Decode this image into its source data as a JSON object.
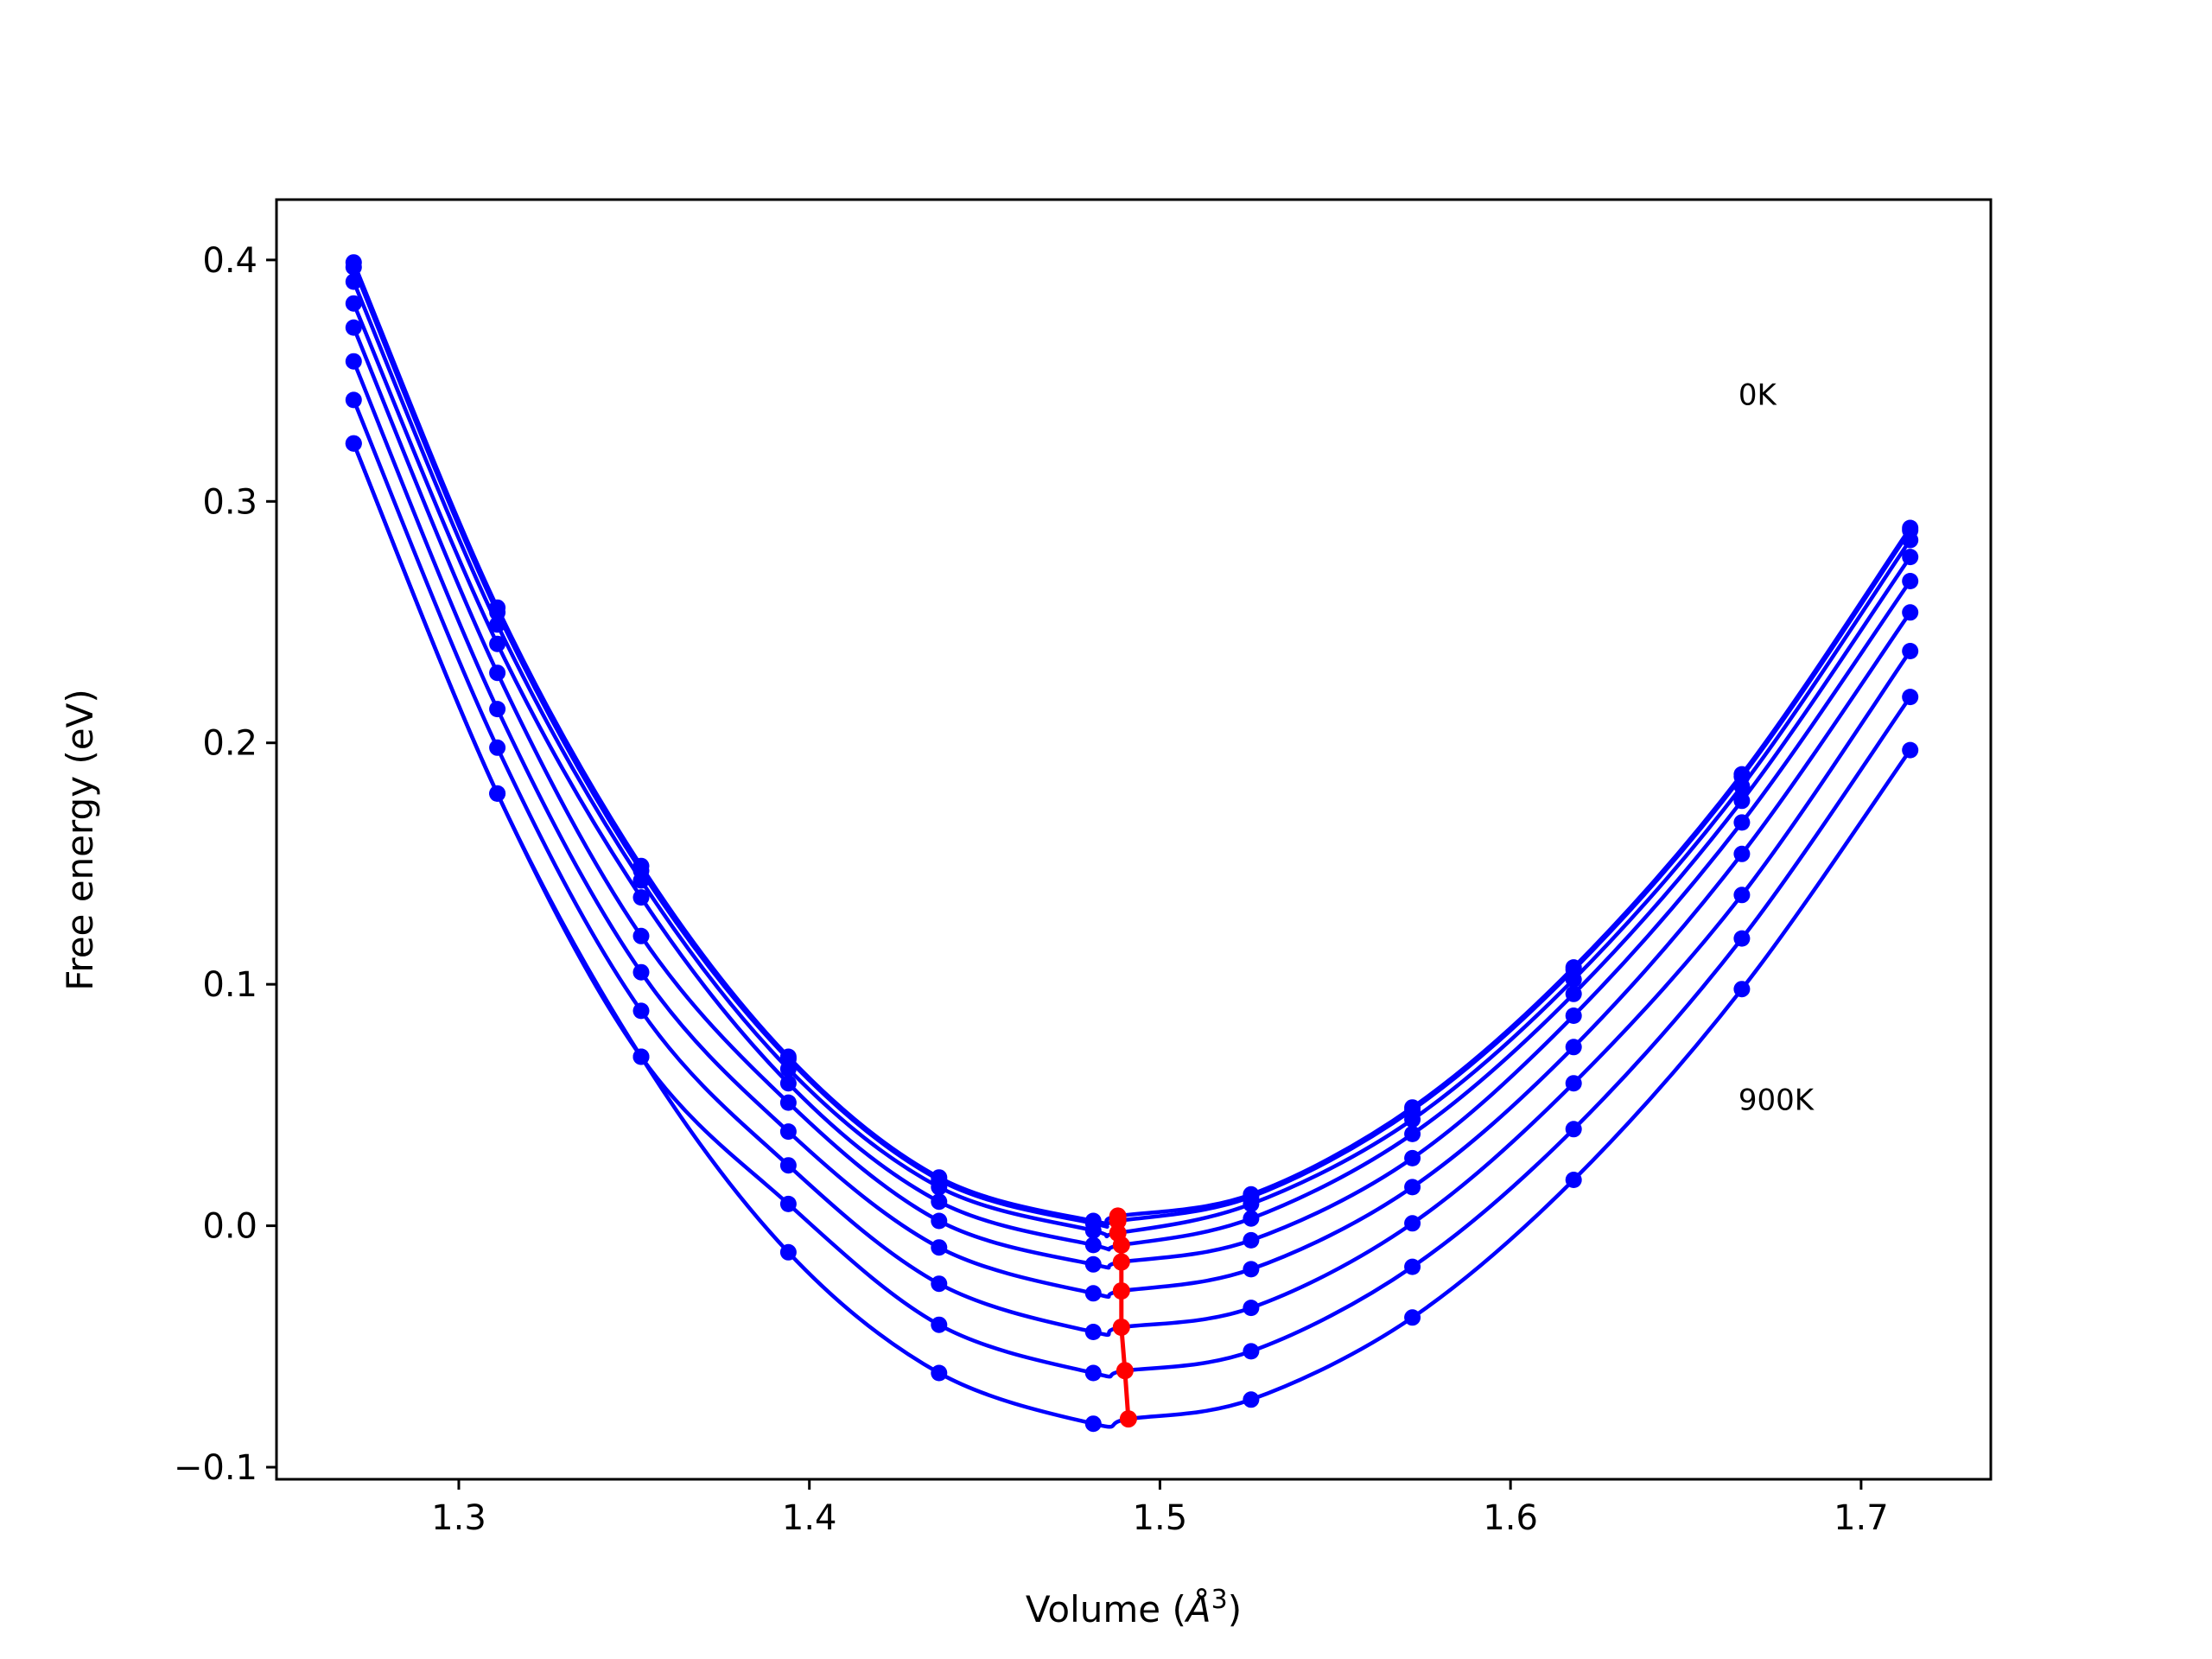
{
  "chart_data": {
    "type": "line",
    "title": "",
    "xlabel": "Volume (",
    "xlabel_symbol": "Å",
    "xlabel_exp": "3",
    "xlabel_close": ")",
    "ylabel": "Free energy (eV)",
    "xlim": [
      1.248,
      1.737
    ],
    "ylim": [
      -0.105,
      0.425
    ],
    "xticks": [
      1.3,
      1.4,
      1.5,
      1.6,
      1.7
    ],
    "xtick_labels": [
      "1.3",
      "1.4",
      "1.5",
      "1.6",
      "1.7"
    ],
    "yticks": [
      -0.1,
      0.0,
      0.1,
      0.2,
      0.3,
      0.4
    ],
    "ytick_labels": [
      "−0.1",
      "0.0",
      "0.1",
      "0.2",
      "0.3",
      "0.4"
    ],
    "grid": false,
    "volumes": [
      1.27,
      1.311,
      1.352,
      1.394,
      1.437,
      1.481,
      1.526,
      1.572,
      1.618,
      1.666,
      1.714
    ],
    "series": [
      {
        "values": [
          0.399,
          0.256,
          0.149,
          0.07,
          0.02,
          0.002,
          0.013,
          0.049,
          0.107,
          0.187,
          0.289
        ]
      },
      {
        "values": [
          0.397,
          0.254,
          0.147,
          0.069,
          0.019,
          0.001,
          0.012,
          0.048,
          0.106,
          0.186,
          0.288
        ]
      },
      {
        "values": [
          0.391,
          0.249,
          0.143,
          0.065,
          0.016,
          -0.002,
          0.009,
          0.044,
          0.102,
          0.182,
          0.284
        ]
      },
      {
        "values": [
          0.382,
          0.241,
          0.136,
          0.059,
          0.01,
          -0.008,
          0.003,
          0.038,
          0.096,
          0.176,
          0.277
        ]
      },
      {
        "values": [
          0.372,
          0.229,
          0.12,
          0.051,
          0.002,
          -0.016,
          -0.006,
          0.028,
          0.087,
          0.167,
          0.267
        ]
      },
      {
        "values": [
          0.358,
          0.214,
          0.105,
          0.039,
          -0.009,
          -0.028,
          -0.018,
          0.016,
          0.074,
          0.154,
          0.254
        ]
      },
      {
        "values": [
          0.342,
          0.198,
          0.089,
          0.025,
          -0.024,
          -0.044,
          -0.034,
          0.001,
          0.059,
          0.137,
          0.238
        ]
      },
      {
        "values": [
          0.324,
          0.179,
          0.07,
          0.009,
          -0.041,
          -0.061,
          -0.052,
          -0.017,
          0.04,
          0.119,
          0.219
        ]
      },
      {
        "values": [
          0.324,
          0.179,
          0.07,
          -0.011,
          -0.061,
          -0.082,
          -0.072,
          -0.038,
          0.019,
          0.098,
          0.197
        ]
      }
    ],
    "minima": {
      "volumes": [
        1.488,
        1.488,
        1.488,
        1.489,
        1.489,
        1.489,
        1.489,
        1.49,
        1.491
      ],
      "energies": [
        0.004,
        0.002,
        -0.003,
        -0.008,
        -0.015,
        -0.027,
        -0.042,
        -0.06,
        -0.08
      ]
    },
    "annotations": [
      {
        "text": "0K",
        "x": 1.665,
        "y": 0.34
      },
      {
        "text": "900K",
        "x": 1.665,
        "y": 0.048
      }
    ],
    "colors": {
      "curves": "#0000ff",
      "minima": "#ff0000",
      "axes": "#000000"
    }
  }
}
